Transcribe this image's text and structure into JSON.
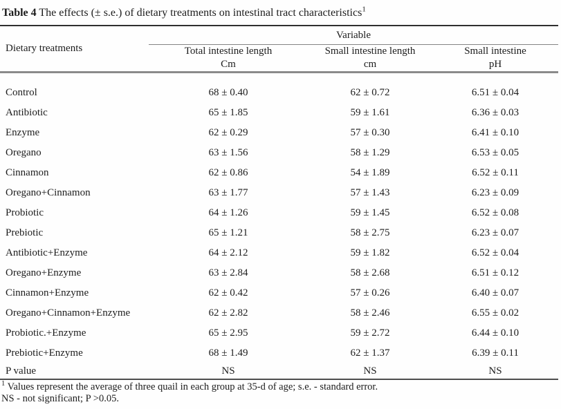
{
  "title": {
    "label": "Table 4",
    "text": " The effects (± s.e.) of dietary treatments on intestinal tract characteristics",
    "superscript": "1"
  },
  "table": {
    "col1_header": "Dietary treatments",
    "group_header": "Variable",
    "columns": [
      {
        "line1": "Total intestine length",
        "line2": "Cm"
      },
      {
        "line1": "Small intestine length",
        "line2": "cm"
      },
      {
        "line1": "Small intestine",
        "line2": "pH"
      }
    ],
    "rows": [
      {
        "treatment": "Control",
        "total": "68 ± 0.40",
        "small": "62 ± 0.72",
        "ph": "6.51 ± 0.04"
      },
      {
        "treatment": "Antibiotic",
        "total": "65 ± 1.85",
        "small": "59 ± 1.61",
        "ph": "6.36 ± 0.03"
      },
      {
        "treatment": "Enzyme",
        "total": "62 ± 0.29",
        "small": "57 ± 0.30",
        "ph": "6.41 ± 0.10"
      },
      {
        "treatment": "Oregano",
        "total": "63 ± 1.56",
        "small": "58 ± 1.29",
        "ph": "6.53 ± 0.05"
      },
      {
        "treatment": "Cinnamon",
        "total": "62 ± 0.86",
        "small": "54 ± 1.89",
        "ph": "6.52 ± 0.11"
      },
      {
        "treatment": "Oregano+Cinnamon",
        "total": "63 ± 1.77",
        "small": "57 ± 1.43",
        "ph": "6.23 ± 0.09"
      },
      {
        "treatment": "Probiotic",
        "total": "64 ± 1.26",
        "small": "59 ± 1.45",
        "ph": "6.52 ± 0.08"
      },
      {
        "treatment": "Prebiotic",
        "total": "65 ± 1.21",
        "small": "58 ± 2.75",
        "ph": "6.23 ± 0.07"
      },
      {
        "treatment": "Antibiotic+Enzyme",
        "total": "64 ± 2.12",
        "small": "59 ± 1.82",
        "ph": "6.52 ± 0.04"
      },
      {
        "treatment": "Oregano+Enzyme",
        "total": "63 ± 2.84",
        "small": "58 ± 2.68",
        "ph": "6.51 ± 0.12"
      },
      {
        "treatment": "Cinnamon+Enzyme",
        "total": "62 ± 0.42",
        "small": "57 ± 0.26",
        "ph": "6.40 ± 0.07"
      },
      {
        "treatment": "Oregano+Cinnamon+Enzyme",
        "total": "62 ± 2.82",
        "small": "58 ± 2.46",
        "ph": "6.55 ± 0.02"
      },
      {
        "treatment": "Probiotic.+Enzyme",
        "total": "65 ± 2.95",
        "small": "59 ± 2.72",
        "ph": "6.44 ± 0.10"
      },
      {
        "treatment": "Prebiotic+Enzyme",
        "total": "68 ± 1.49",
        "small": "62 ± 1.37",
        "ph": "6.39 ± 0.11"
      },
      {
        "treatment": "P value",
        "total": "NS",
        "small": "NS",
        "ph": "NS"
      }
    ]
  },
  "footnotes": {
    "sup": "1",
    "line1": " Values represent the average of three quail in each group at 35-d of age; s.e. - standard error.",
    "line2": "NS - not significant; P >0.05."
  }
}
